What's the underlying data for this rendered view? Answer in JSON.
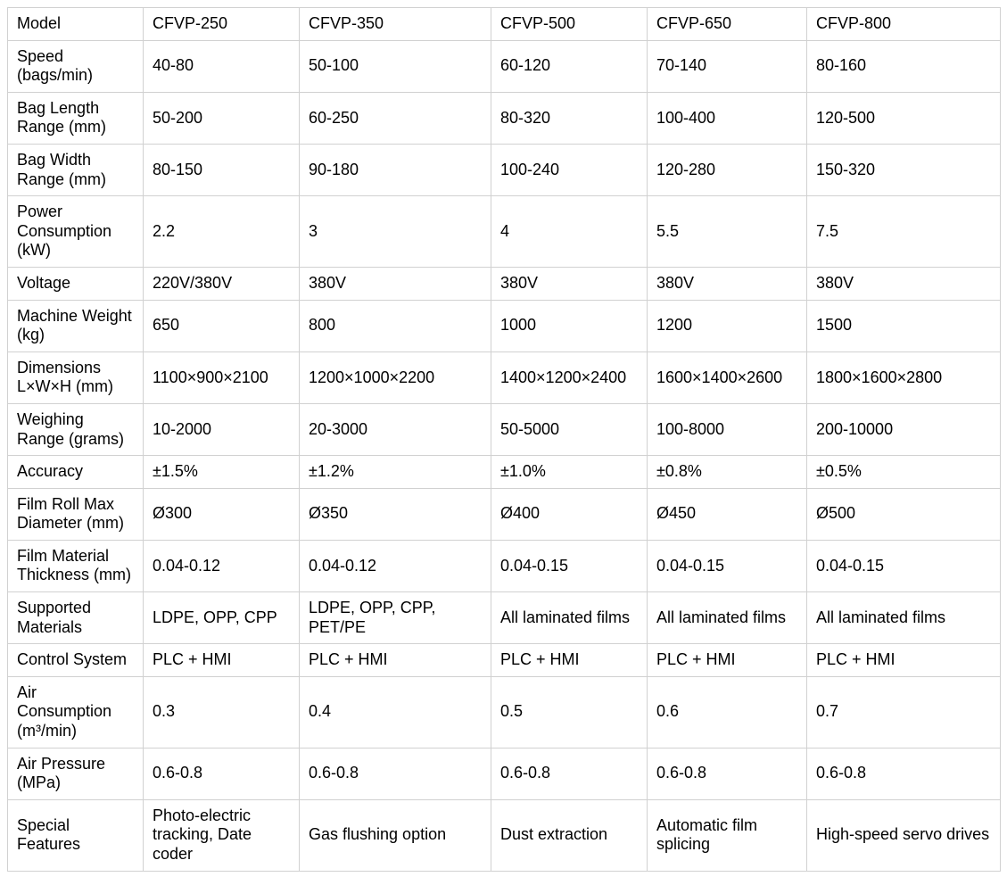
{
  "colors": {
    "background": "#ffffff",
    "border": "#d1d1d1",
    "text": "#000000"
  },
  "chart_data": {
    "type": "table",
    "header": [
      "Model",
      "CFVP-250",
      "CFVP-350",
      "CFVP-500",
      "CFVP-650",
      "CFVP-800"
    ],
    "rows": [
      {
        "label": "Speed (bags/min)",
        "values": [
          "40-80",
          "50-100",
          "60-120",
          "70-140",
          "80-160"
        ]
      },
      {
        "label": "Bag Length Range (mm)",
        "values": [
          "50-200",
          "60-250",
          "80-320",
          "100-400",
          "120-500"
        ]
      },
      {
        "label": "Bag Width Range (mm)",
        "values": [
          "80-150",
          "90-180",
          "100-240",
          "120-280",
          "150-320"
        ]
      },
      {
        "label": "Power Consumption (kW)",
        "values": [
          "2.2",
          "3",
          "4",
          "5.5",
          "7.5"
        ]
      },
      {
        "label": "Voltage",
        "values": [
          "220V/380V",
          "380V",
          "380V",
          "380V",
          "380V"
        ]
      },
      {
        "label": "Machine Weight (kg)",
        "values": [
          "650",
          "800",
          "1000",
          "1200",
          "1500"
        ]
      },
      {
        "label": "Dimensions L×W×H (mm)",
        "values": [
          "1100×900×2100",
          "1200×1000×2200",
          "1400×1200×2400",
          "1600×1400×2600",
          "1800×1600×2800"
        ]
      },
      {
        "label": "Weighing Range (grams)",
        "values": [
          "10-2000",
          "20-3000",
          "50-5000",
          "100-8000",
          "200-10000"
        ]
      },
      {
        "label": "Accuracy",
        "values": [
          "±1.5%",
          "±1.2%",
          "±1.0%",
          "±0.8%",
          "±0.5%"
        ]
      },
      {
        "label": "Film Roll Max Diameter (mm)",
        "values": [
          "Ø300",
          "Ø350",
          "Ø400",
          "Ø450",
          "Ø500"
        ]
      },
      {
        "label": "Film Material Thickness (mm)",
        "values": [
          "0.04-0.12",
          "0.04-0.12",
          "0.04-0.15",
          "0.04-0.15",
          "0.04-0.15"
        ]
      },
      {
        "label": "Supported Materials",
        "values": [
          "LDPE, OPP, CPP",
          "LDPE, OPP, CPP, PET/PE",
          "All laminated films",
          "All laminated films",
          "All laminated films"
        ]
      },
      {
        "label": "Control System",
        "values": [
          "PLC + HMI",
          "PLC + HMI",
          "PLC + HMI",
          "PLC + HMI",
          "PLC + HMI"
        ]
      },
      {
        "label": "Air Consumption (m³/min)",
        "values": [
          "0.3",
          "0.4",
          "0.5",
          "0.6",
          "0.7"
        ]
      },
      {
        "label": "Air Pressure (MPa)",
        "values": [
          "0.6-0.8",
          "0.6-0.8",
          "0.6-0.8",
          "0.6-0.8",
          "0.6-0.8"
        ]
      },
      {
        "label": "Special Features",
        "values": [
          "Photo-electric tracking, Date coder",
          "Gas flushing option",
          "Dust extraction",
          "Automatic film splicing",
          "High-speed servo drives"
        ]
      }
    ]
  }
}
